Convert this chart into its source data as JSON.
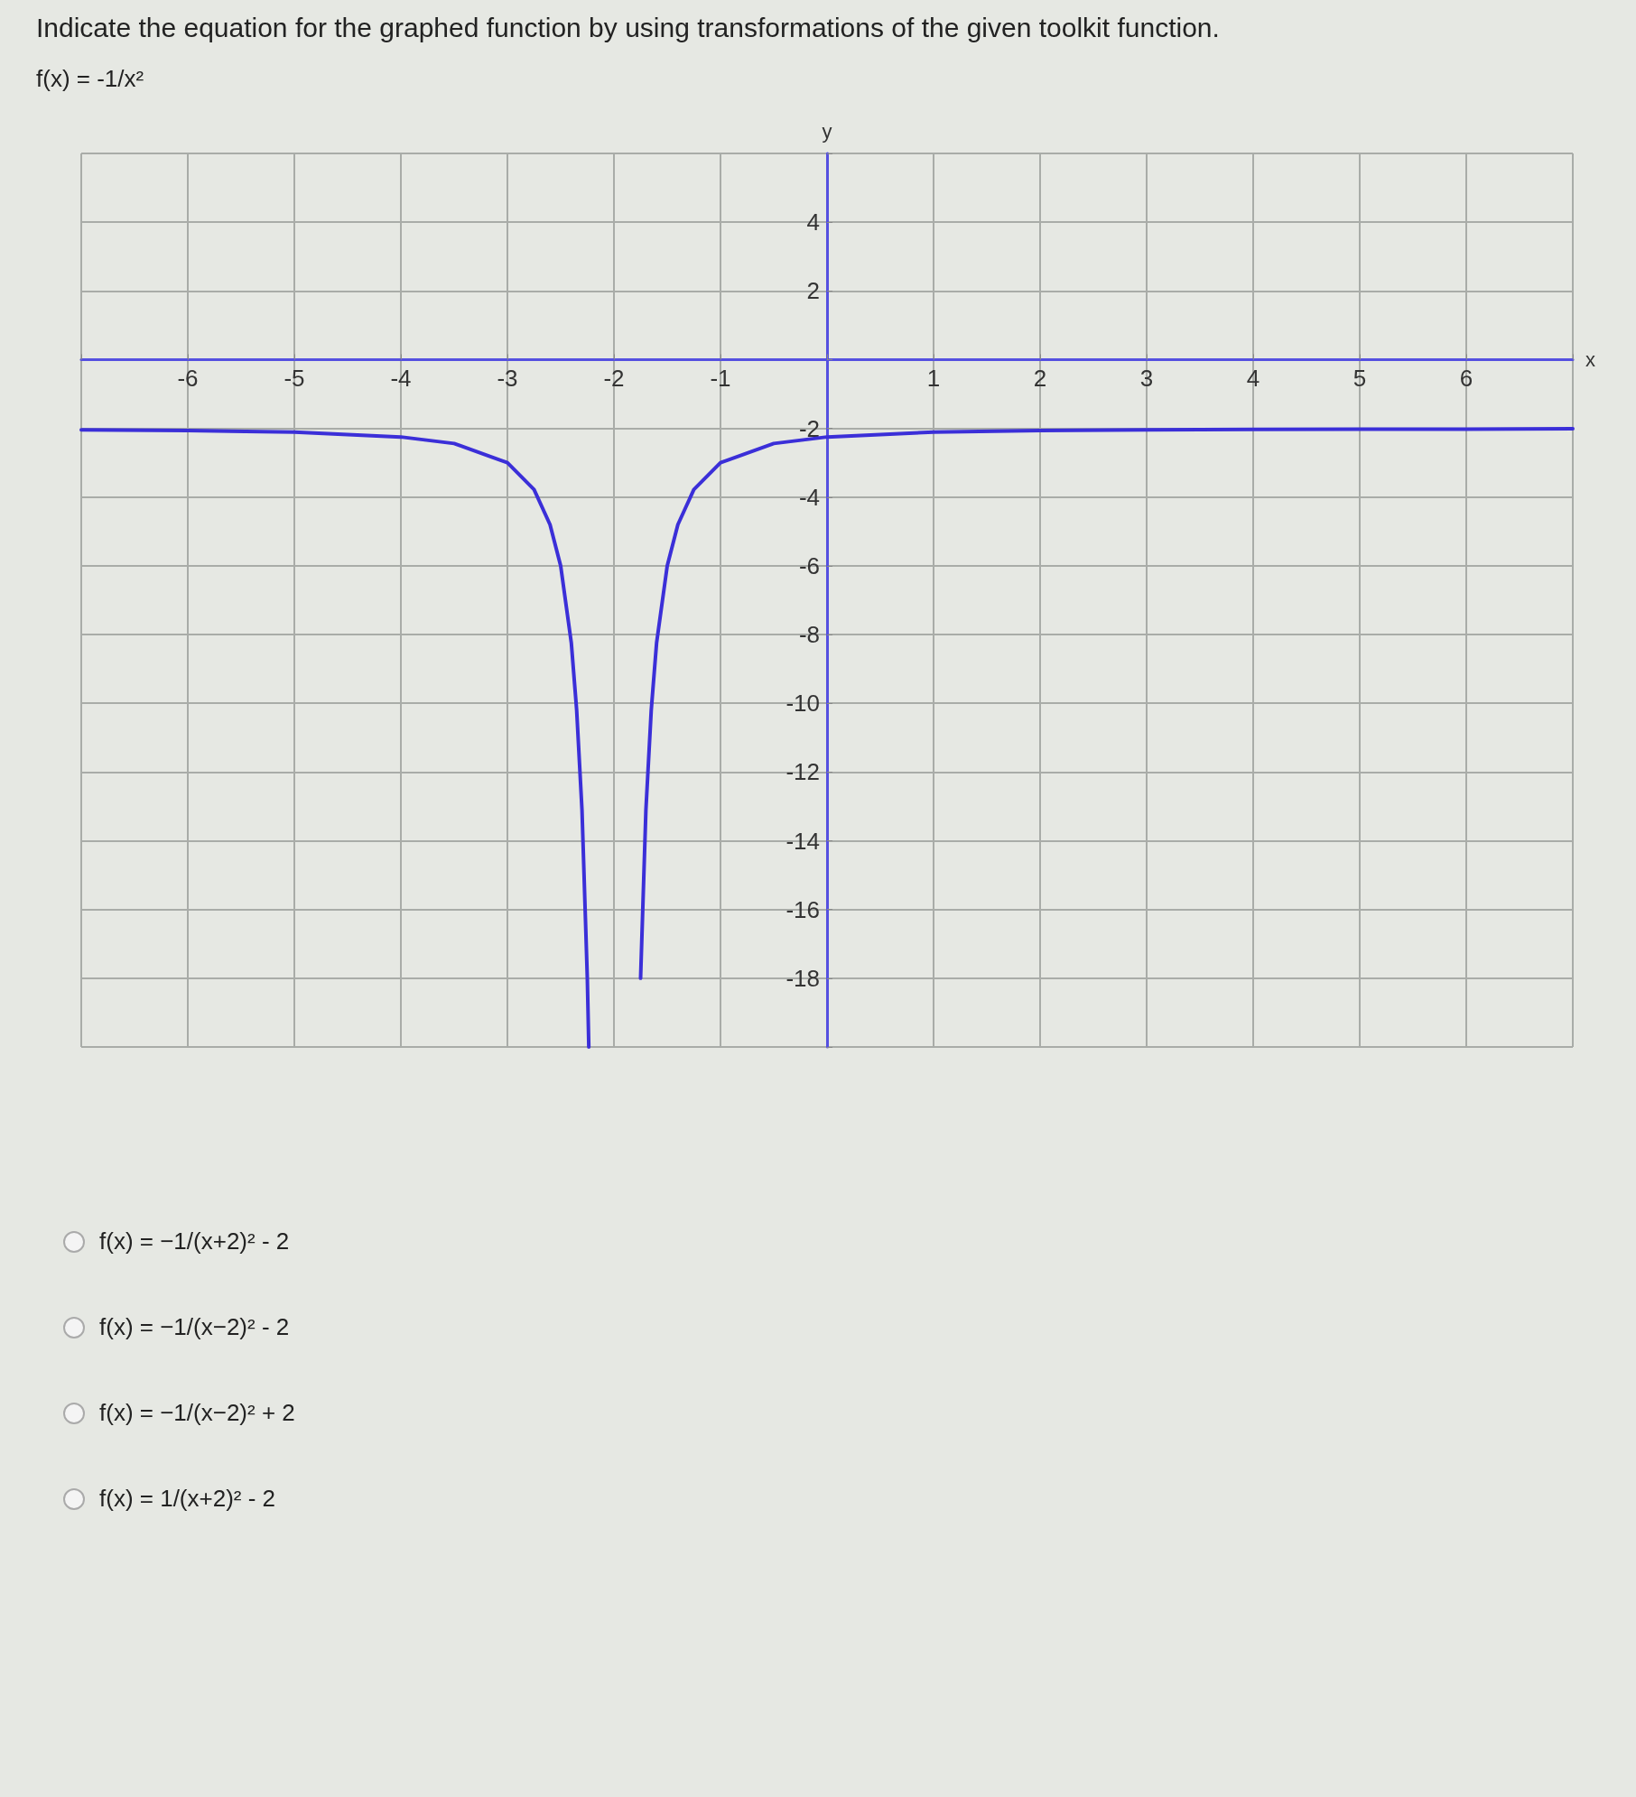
{
  "chart_data": {
    "type": "line",
    "title": "Indicate the equation for the graphed function by using transformations of the given toolkit function.",
    "xlabel": "x",
    "ylabel": "y",
    "annotations": [
      "f(x) = -1/x²",
      "f(x) = −1/(x+2)² - 2",
      "f(x) = −1/(x−2)² - 2",
      "f(x) = −1/(x−2)² + 2",
      "f(x) = 1/(x+2)² - 2"
    ],
    "series": [
      {
        "color": "#3b2fd8",
        "x": [
          -7,
          -6,
          -5,
          -4,
          -3.5,
          -3,
          -2.75,
          -2.6,
          -2.5,
          -2.4,
          -2.35,
          -2.3,
          -2.25,
          -2.236,
          -1.764,
          -1.75,
          -1.7,
          -1.65,
          -1.6,
          -1.5,
          -1.4,
          -1.25,
          -1,
          -0.5,
          0,
          1,
          2,
          3,
          4,
          5,
          6,
          7
        ],
        "values": [
          -2.04,
          -2.06,
          -2.11,
          -2.25,
          -2.44,
          -3,
          -3.78,
          -4.8,
          -6,
          -8.25,
          -10.2,
          -13.1,
          -18,
          -20,
          null,
          -18,
          -13.1,
          -10.2,
          -8.25,
          -6,
          -4.8,
          -3.78,
          -3,
          -2.44,
          -2.25,
          -2.11,
          -2.06,
          -2.04,
          -2.03,
          -2.02,
          -2.02,
          -2.01
        ]
      }
    ],
    "xlim": [
      -7,
      7
    ],
    "xticks": [
      {
        "value": -7,
        "label": null
      },
      -6,
      -5,
      -4,
      -3,
      -2,
      -1,
      {
        "value": 0,
        "label": null
      },
      1,
      2,
      3,
      4,
      5,
      6,
      {
        "value": 7,
        "label": null
      }
    ],
    "ylim": [
      -20,
      6
    ],
    "yticks": [
      {
        "value": -20,
        "label": null
      },
      -18,
      -16,
      -14,
      -12,
      -10,
      -8,
      -6,
      -4,
      -2,
      {
        "value": 0,
        "label": null
      },
      2,
      4,
      {
        "value": 6,
        "label": null
      }
    ],
    "grid": true,
    "marker": "none",
    "line_style": "solid"
  }
}
